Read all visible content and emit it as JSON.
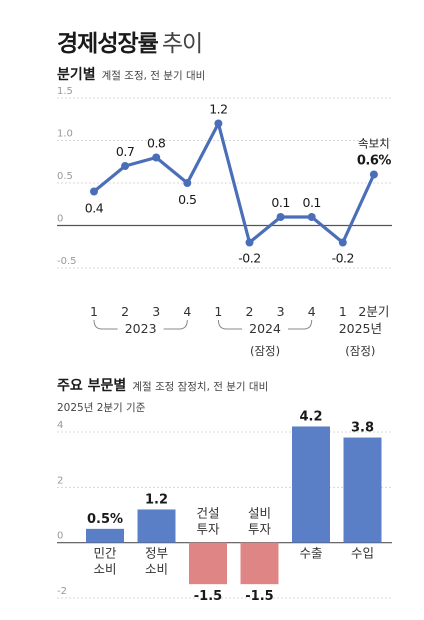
{
  "title": {
    "main": "경제성장률",
    "suffix": "추이"
  },
  "quarterly": {
    "title": "분기별",
    "subtitle": "계절 조정, 전 분기 대비",
    "chart_data": {
      "type": "line",
      "ylim": [
        -0.5,
        1.5
      ],
      "yticks": [
        "1.5",
        "1.0",
        "0.5",
        "0",
        "-0.5"
      ],
      "ytick_values": [
        1.5,
        1.0,
        0.5,
        0,
        -0.5
      ],
      "categories": [
        "1",
        "2",
        "3",
        "4",
        "1",
        "2",
        "3",
        "4",
        "1",
        "2분기"
      ],
      "values": [
        0.4,
        0.7,
        0.8,
        0.5,
        1.2,
        -0.2,
        0.1,
        0.1,
        -0.2,
        0.6
      ],
      "data_labels": [
        "0.4",
        "0.7",
        "0.8",
        "0.5",
        "1.2",
        "-0.2",
        "0.1",
        "0.1",
        "-0.2",
        "0.6%"
      ],
      "groups": [
        {
          "label": "2023",
          "note": ""
        },
        {
          "label": "2024",
          "note": "(잠정)"
        },
        {
          "label": "2025년",
          "note": "(잠정)"
        }
      ],
      "annotation": "속보치",
      "color": "#4a6fb8"
    }
  },
  "sector": {
    "title": "주요 부문별",
    "subtitle": "계절 조정 잠정치, 전 분기 대비",
    "note": "2025년 2분기 기준",
    "chart_data": {
      "type": "bar",
      "ylim": [
        -2,
        4
      ],
      "yticks": [
        "4",
        "2",
        "0",
        "-2"
      ],
      "ytick_values": [
        4,
        2,
        0,
        -2
      ],
      "categories": [
        [
          "민간",
          "소비"
        ],
        [
          "정부",
          "소비"
        ],
        [
          "건설",
          "투자"
        ],
        [
          "설비",
          "투자"
        ],
        [
          "수출"
        ],
        [
          "수입"
        ]
      ],
      "values": [
        0.5,
        1.2,
        -1.5,
        -1.5,
        4.2,
        3.8
      ],
      "data_labels": [
        "0.5%",
        "1.2",
        "-1.5",
        "-1.5",
        "4.2",
        "3.8"
      ],
      "positive_color": "#5b7fc7",
      "negative_color": "#e08585"
    }
  }
}
